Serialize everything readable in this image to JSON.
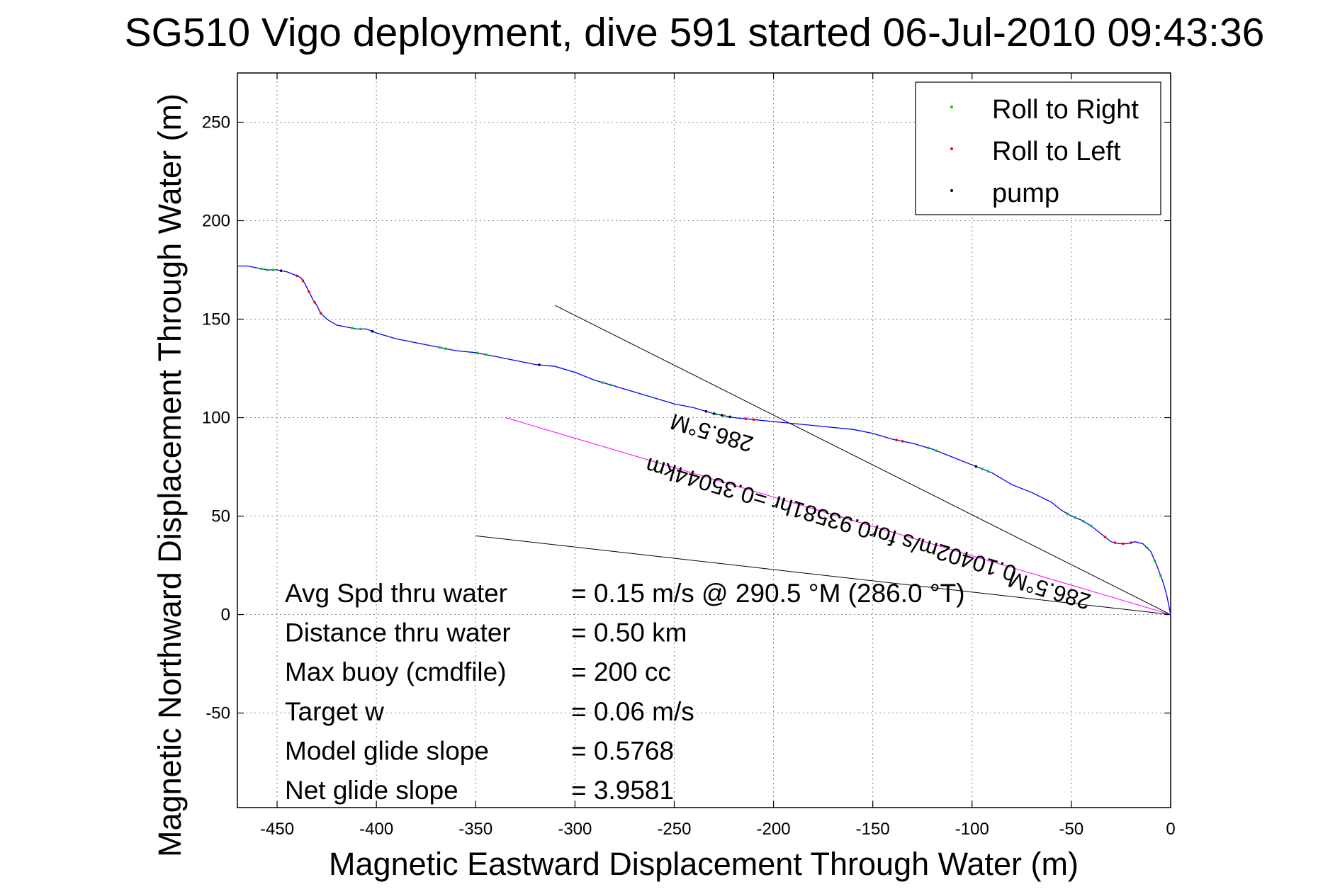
{
  "chart_data": {
    "type": "line",
    "title": "SG510 Vigo deployment, dive 591 started 06-Jul-2010 09:43:36",
    "xlabel": "Magnetic Eastward Displacement Through Water (m)",
    "ylabel": "Magnetic Northward Displacement Through Water (m)",
    "xlim": [
      -470,
      0
    ],
    "ylim": [
      -98,
      275
    ],
    "x_ticks": [
      -450,
      -400,
      -350,
      -300,
      -250,
      -200,
      -150,
      -100,
      -50,
      0
    ],
    "y_ticks": [
      -50,
      0,
      50,
      100,
      150,
      200,
      250
    ],
    "grid": true,
    "legend_position": "top-right",
    "legend": [
      {
        "label": "Roll to Right",
        "color": "#00cc00"
      },
      {
        "label": "Roll to Left",
        "color": "#ff0000"
      },
      {
        "label": "pump",
        "color": "#000000"
      }
    ],
    "track": {
      "color": "#0000ff",
      "x": [
        0,
        -1,
        -2,
        -4,
        -7,
        -10,
        -14,
        -18,
        -22,
        -26,
        -30,
        -35,
        -40,
        -45,
        -50,
        -55,
        -60,
        -70,
        -80,
        -90,
        -100,
        -110,
        -120,
        -130,
        -140,
        -150,
        -160,
        -170,
        -180,
        -190,
        -200,
        -210,
        -220,
        -230,
        -240,
        -250,
        -260,
        -270,
        -280,
        -290,
        -300,
        -310,
        -320,
        -330,
        -340,
        -350,
        -360,
        -370,
        -380,
        -390,
        -400,
        -405,
        -410,
        -415,
        -420,
        -425,
        -428,
        -430,
        -432,
        -434,
        -436,
        -438,
        -440,
        -445,
        -450,
        -455,
        -460,
        -465,
        -470
      ],
      "y": [
        0,
        5,
        10,
        17,
        25,
        32,
        36,
        37,
        36,
        36,
        37,
        41,
        45,
        48,
        50,
        53,
        57,
        62,
        66,
        72,
        76,
        80,
        84,
        87,
        89,
        92,
        94,
        95,
        96,
        97,
        98,
        99,
        100,
        102,
        105,
        107,
        110,
        113,
        116,
        119,
        123,
        126,
        127,
        129,
        131,
        133,
        134,
        136,
        138,
        140,
        143,
        145,
        145,
        146,
        147,
        150,
        153,
        157,
        160,
        164,
        168,
        171,
        172,
        174,
        175,
        175,
        176,
        177,
        177
      ]
    },
    "roll_right_x": [
      -5,
      -8,
      -12,
      -40,
      -44,
      -48,
      -52,
      -92,
      -95,
      -118,
      -122,
      -225,
      -229,
      -282,
      -286,
      -345,
      -349,
      -365,
      -368,
      -408,
      -412,
      -452,
      -455,
      -458
    ],
    "roll_left_x": [
      -20,
      -24,
      -28,
      -33,
      -135,
      -138,
      -210,
      -214,
      -428,
      -431,
      -434,
      -437,
      -440
    ],
    "pump_x": [
      -98,
      -222,
      -226,
      -230,
      -234,
      -318,
      -402,
      -448
    ],
    "reference_lines": [
      {
        "color": "#000000",
        "x": [
          -310,
          0
        ],
        "y": [
          157,
          0
        ]
      },
      {
        "color": "#000000",
        "x": [
          -350,
          0
        ],
        "y": [
          40,
          0
        ]
      },
      {
        "color": "#ff00ff",
        "x": [
          -335,
          0
        ],
        "y": [
          100,
          0
        ]
      }
    ],
    "annotations": [
      {
        "text": "286.5°M",
        "anchor": [
          -230,
          96
        ],
        "rotation_deg": 196.5
      },
      {
        "text": "0.10402m/s for0.93581hr =0.35044km",
        "anchor": [
          -170,
          52
        ],
        "rotation_deg": 196.5
      },
      {
        "text": "286.5°M",
        "anchor": [
          -60,
          16
        ],
        "rotation_deg": 196.5
      }
    ],
    "stats": [
      {
        "label": "Avg Spd thru water",
        "value": "=  0.15 m/s @ 290.5 °M (286.0 °T)"
      },
      {
        "label": "Distance thru water",
        "value": "=  0.50 km"
      },
      {
        "label": "Max buoy (cmdfile)",
        "value": "= 200 cc"
      },
      {
        "label": "Target w",
        "value": "= 0.06 m/s"
      },
      {
        "label": "Model glide slope",
        "value": "= 0.5768"
      },
      {
        "label": "Net glide slope",
        "value": "= 3.9581"
      }
    ]
  }
}
